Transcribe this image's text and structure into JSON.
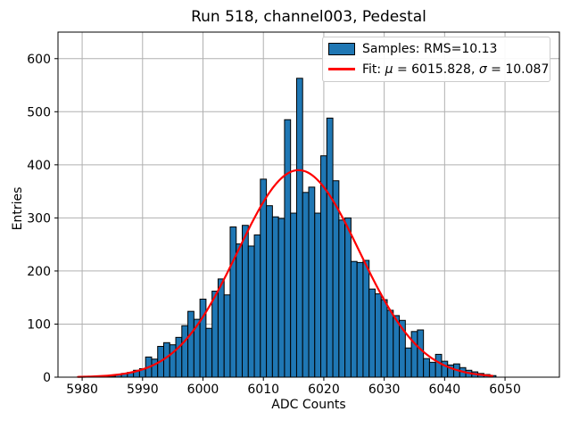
{
  "title": "Run 518, channel003, Pedestal",
  "legend": {
    "samples_label": "Samples: RMS=10.13",
    "fit_label": "Fit: μ = 6015.828, σ = 10.087",
    "fit_label_parts": {
      "prefix": "Fit: ",
      "mu_symbol": "μ",
      "mu_value": " = 6015.828, ",
      "sigma_symbol": "σ",
      "sigma_value": " = 10.087"
    }
  },
  "chart_data": {
    "type": "bar",
    "title": "Run 518, channel003, Pedestal",
    "xlabel": "ADC Counts",
    "ylabel": "Entries",
    "xlim": [
      5976,
      6059
    ],
    "ylim": [
      0,
      650
    ],
    "xticks": [
      5980,
      5990,
      6000,
      6010,
      6020,
      6030,
      6040,
      6050
    ],
    "yticks": [
      0,
      100,
      200,
      300,
      400,
      500,
      600
    ],
    "grid": true,
    "grid_color": "#b0b0b0",
    "legend_position": "upper right",
    "bin_width": 1,
    "bar_color": "#1f77b4",
    "bar_edge_color": "#000000",
    "fit_color": "#ff0000",
    "bins": [
      5984,
      5985,
      5986,
      5987,
      5988,
      5989,
      5990,
      5991,
      5992,
      5993,
      5994,
      5995,
      5996,
      5997,
      5998,
      5999,
      6000,
      6001,
      6002,
      6003,
      6004,
      6005,
      6006,
      6007,
      6008,
      6009,
      6010,
      6011,
      6012,
      6013,
      6014,
      6015,
      6016,
      6017,
      6018,
      6019,
      6020,
      6021,
      6022,
      6023,
      6024,
      6025,
      6026,
      6027,
      6028,
      6029,
      6030,
      6031,
      6032,
      6033,
      6034,
      6035,
      6036,
      6037,
      6038,
      6039,
      6040,
      6041,
      6042,
      6043,
      6044,
      6045,
      6046,
      6047,
      6048
    ],
    "values": [
      1,
      2,
      5,
      7,
      9,
      13,
      16,
      38,
      34,
      58,
      65,
      61,
      75,
      97,
      124,
      109,
      147,
      92,
      162,
      185,
      155,
      283,
      251,
      286,
      247,
      268,
      373,
      323,
      302,
      299,
      485,
      309,
      563,
      348,
      358,
      309,
      417,
      488,
      370,
      296,
      300,
      218,
      216,
      220,
      166,
      157,
      146,
      126,
      116,
      107,
      55,
      86,
      89,
      35,
      28,
      43,
      30,
      23,
      25,
      18,
      13,
      10,
      7,
      5,
      3
    ],
    "fit": {
      "mu": 6015.828,
      "sigma": 10.087,
      "amplitude": 390,
      "range": [
        5979.3,
        6048.2
      ]
    },
    "stats": {
      "rms": 10.13
    }
  }
}
